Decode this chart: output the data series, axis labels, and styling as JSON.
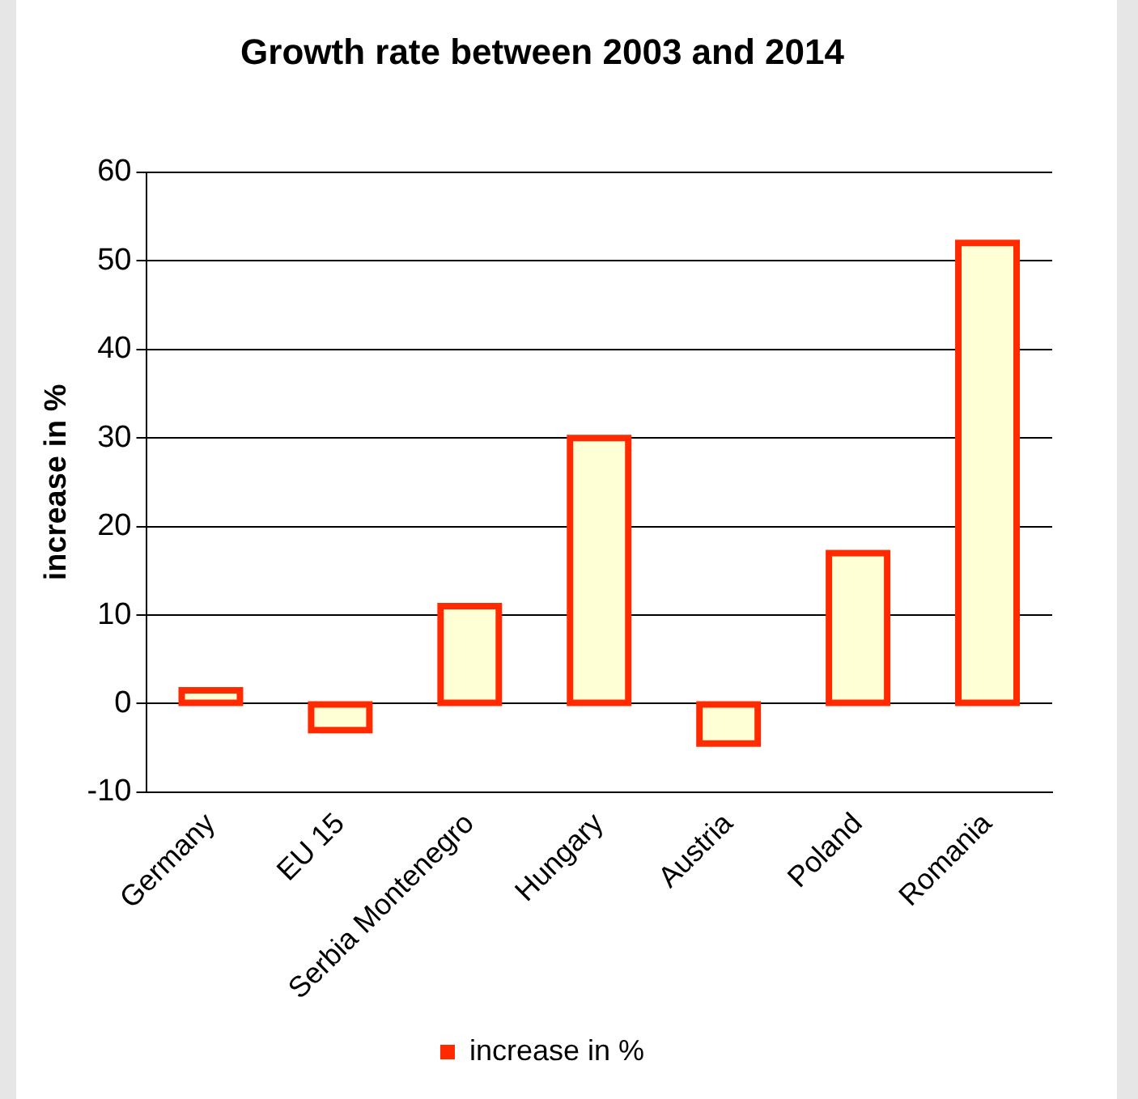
{
  "chart_data": {
    "type": "bar",
    "title": "Growth rate between 2003 and 2014",
    "ylabel": "increase in %",
    "categories": [
      "Germany",
      "EU 15",
      "Serbia Montenegro",
      "Hungary",
      "Austria",
      "Poland",
      "Romania"
    ],
    "series": [
      {
        "name": "increase in %",
        "color": "#ff2a00",
        "values": [
          1.5,
          -3,
          11,
          30,
          -4.5,
          17,
          52
        ]
      }
    ],
    "ylim": [
      -10,
      60
    ],
    "yticks": [
      -10,
      0,
      10,
      20,
      30,
      40,
      50,
      60
    ],
    "grid": "y",
    "legend": "bottom"
  }
}
